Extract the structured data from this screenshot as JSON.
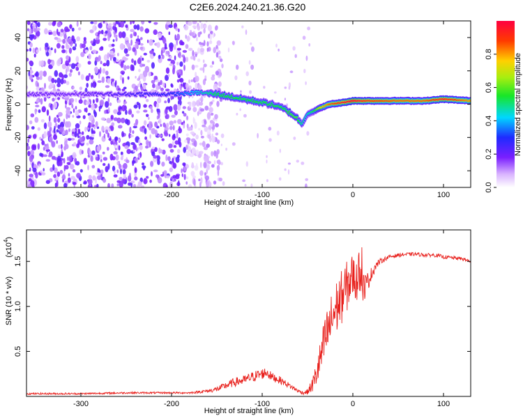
{
  "title": "C2E6.2024.240.21.36.G20",
  "colors": {
    "background": "#ffffff",
    "snr_line": "#e8201c",
    "axes": "#000000"
  },
  "chart_data": [
    {
      "type": "heatmap",
      "xlabel": "Height of straight line (km)",
      "ylabel": "Frequency (Hz)",
      "xlim": [
        -360,
        130
      ],
      "ylim": [
        -50,
        50
      ],
      "x_ticks": [
        -300,
        -200,
        -100,
        0,
        100
      ],
      "y_ticks": [
        -40,
        -20,
        0,
        20,
        40
      ],
      "grid": false,
      "colormap": "rainbow (white-violet-blue-cyan-green-yellow-red)",
      "colorbar": {
        "label": "Normalized spectral amplitude",
        "range": [
          0,
          1
        ],
        "ticks": [
          0.0,
          0.2,
          0.4,
          0.6,
          0.8
        ]
      },
      "ridge_trace": {
        "x": [
          -360,
          -300,
          -250,
          -200,
          -170,
          -150,
          -130,
          -110,
          -90,
          -75,
          -62,
          -56,
          -50,
          -42,
          -35,
          -25,
          -10,
          0,
          20,
          50,
          80,
          100,
          130
        ],
        "y": [
          6,
          6,
          6,
          6,
          7,
          6,
          4,
          2,
          0,
          -3,
          -8,
          -12,
          -6,
          -4,
          -2,
          0,
          1,
          2,
          2,
          2,
          2,
          3,
          2
        ],
        "amplitude": [
          0.2,
          0.2,
          0.25,
          0.3,
          0.45,
          0.55,
          0.55,
          0.55,
          0.55,
          0.55,
          0.6,
          0.5,
          0.45,
          0.55,
          0.75,
          0.85,
          0.95,
          1.0,
          0.9,
          0.85,
          0.85,
          0.95,
          0.8
        ]
      },
      "noise_region_x": [
        -360,
        -155
      ]
    },
    {
      "type": "line",
      "xlabel": "Height of straight line (km)",
      "ylabel": "SNR (10 * v/v)",
      "y_multiplier_label": "(x10",
      "y_multiplier_exp": "4",
      "y_multiplier_close": ")",
      "xlim": [
        -360,
        130
      ],
      "ylim": [
        0,
        1.85
      ],
      "x_ticks": [
        -300,
        -200,
        -100,
        0,
        100
      ],
      "y_ticks": [
        0.5,
        1.0,
        1.5
      ],
      "grid": false,
      "series": [
        {
          "x": [
            -360,
            -300,
            -250,
            -200,
            -180,
            -160,
            -150,
            -140,
            -130,
            -120,
            -110,
            -100,
            -95,
            -90,
            -80,
            -70,
            -60,
            -55,
            -50,
            -45,
            -40,
            -35,
            -30,
            -25,
            -20,
            -15,
            -10,
            -5,
            0,
            5,
            8,
            10,
            15,
            20,
            25,
            30,
            40,
            50,
            60,
            70,
            80,
            90,
            100,
            110,
            120,
            130
          ],
          "y": [
            0.03,
            0.03,
            0.04,
            0.04,
            0.04,
            0.06,
            0.08,
            0.12,
            0.16,
            0.18,
            0.22,
            0.25,
            0.27,
            0.22,
            0.18,
            0.12,
            0.06,
            0.04,
            0.05,
            0.12,
            0.25,
            0.45,
            0.65,
            0.8,
            0.95,
            1.05,
            1.15,
            1.25,
            1.35,
            1.25,
            1.45,
            1.2,
            1.25,
            1.35,
            1.45,
            1.5,
            1.55,
            1.57,
            1.58,
            1.58,
            1.57,
            1.57,
            1.55,
            1.54,
            1.53,
            1.5
          ],
          "noise": [
            0.01,
            0.01,
            0.01,
            0.01,
            0.01,
            0.02,
            0.03,
            0.04,
            0.05,
            0.05,
            0.06,
            0.06,
            0.06,
            0.05,
            0.04,
            0.03,
            0.02,
            0.02,
            0.03,
            0.08,
            0.15,
            0.22,
            0.28,
            0.3,
            0.32,
            0.3,
            0.3,
            0.28,
            0.25,
            0.22,
            0.25,
            0.2,
            0.12,
            0.08,
            0.05,
            0.03,
            0.02,
            0.02,
            0.02,
            0.02,
            0.02,
            0.02,
            0.02,
            0.02,
            0.02,
            0.02
          ]
        }
      ]
    }
  ]
}
